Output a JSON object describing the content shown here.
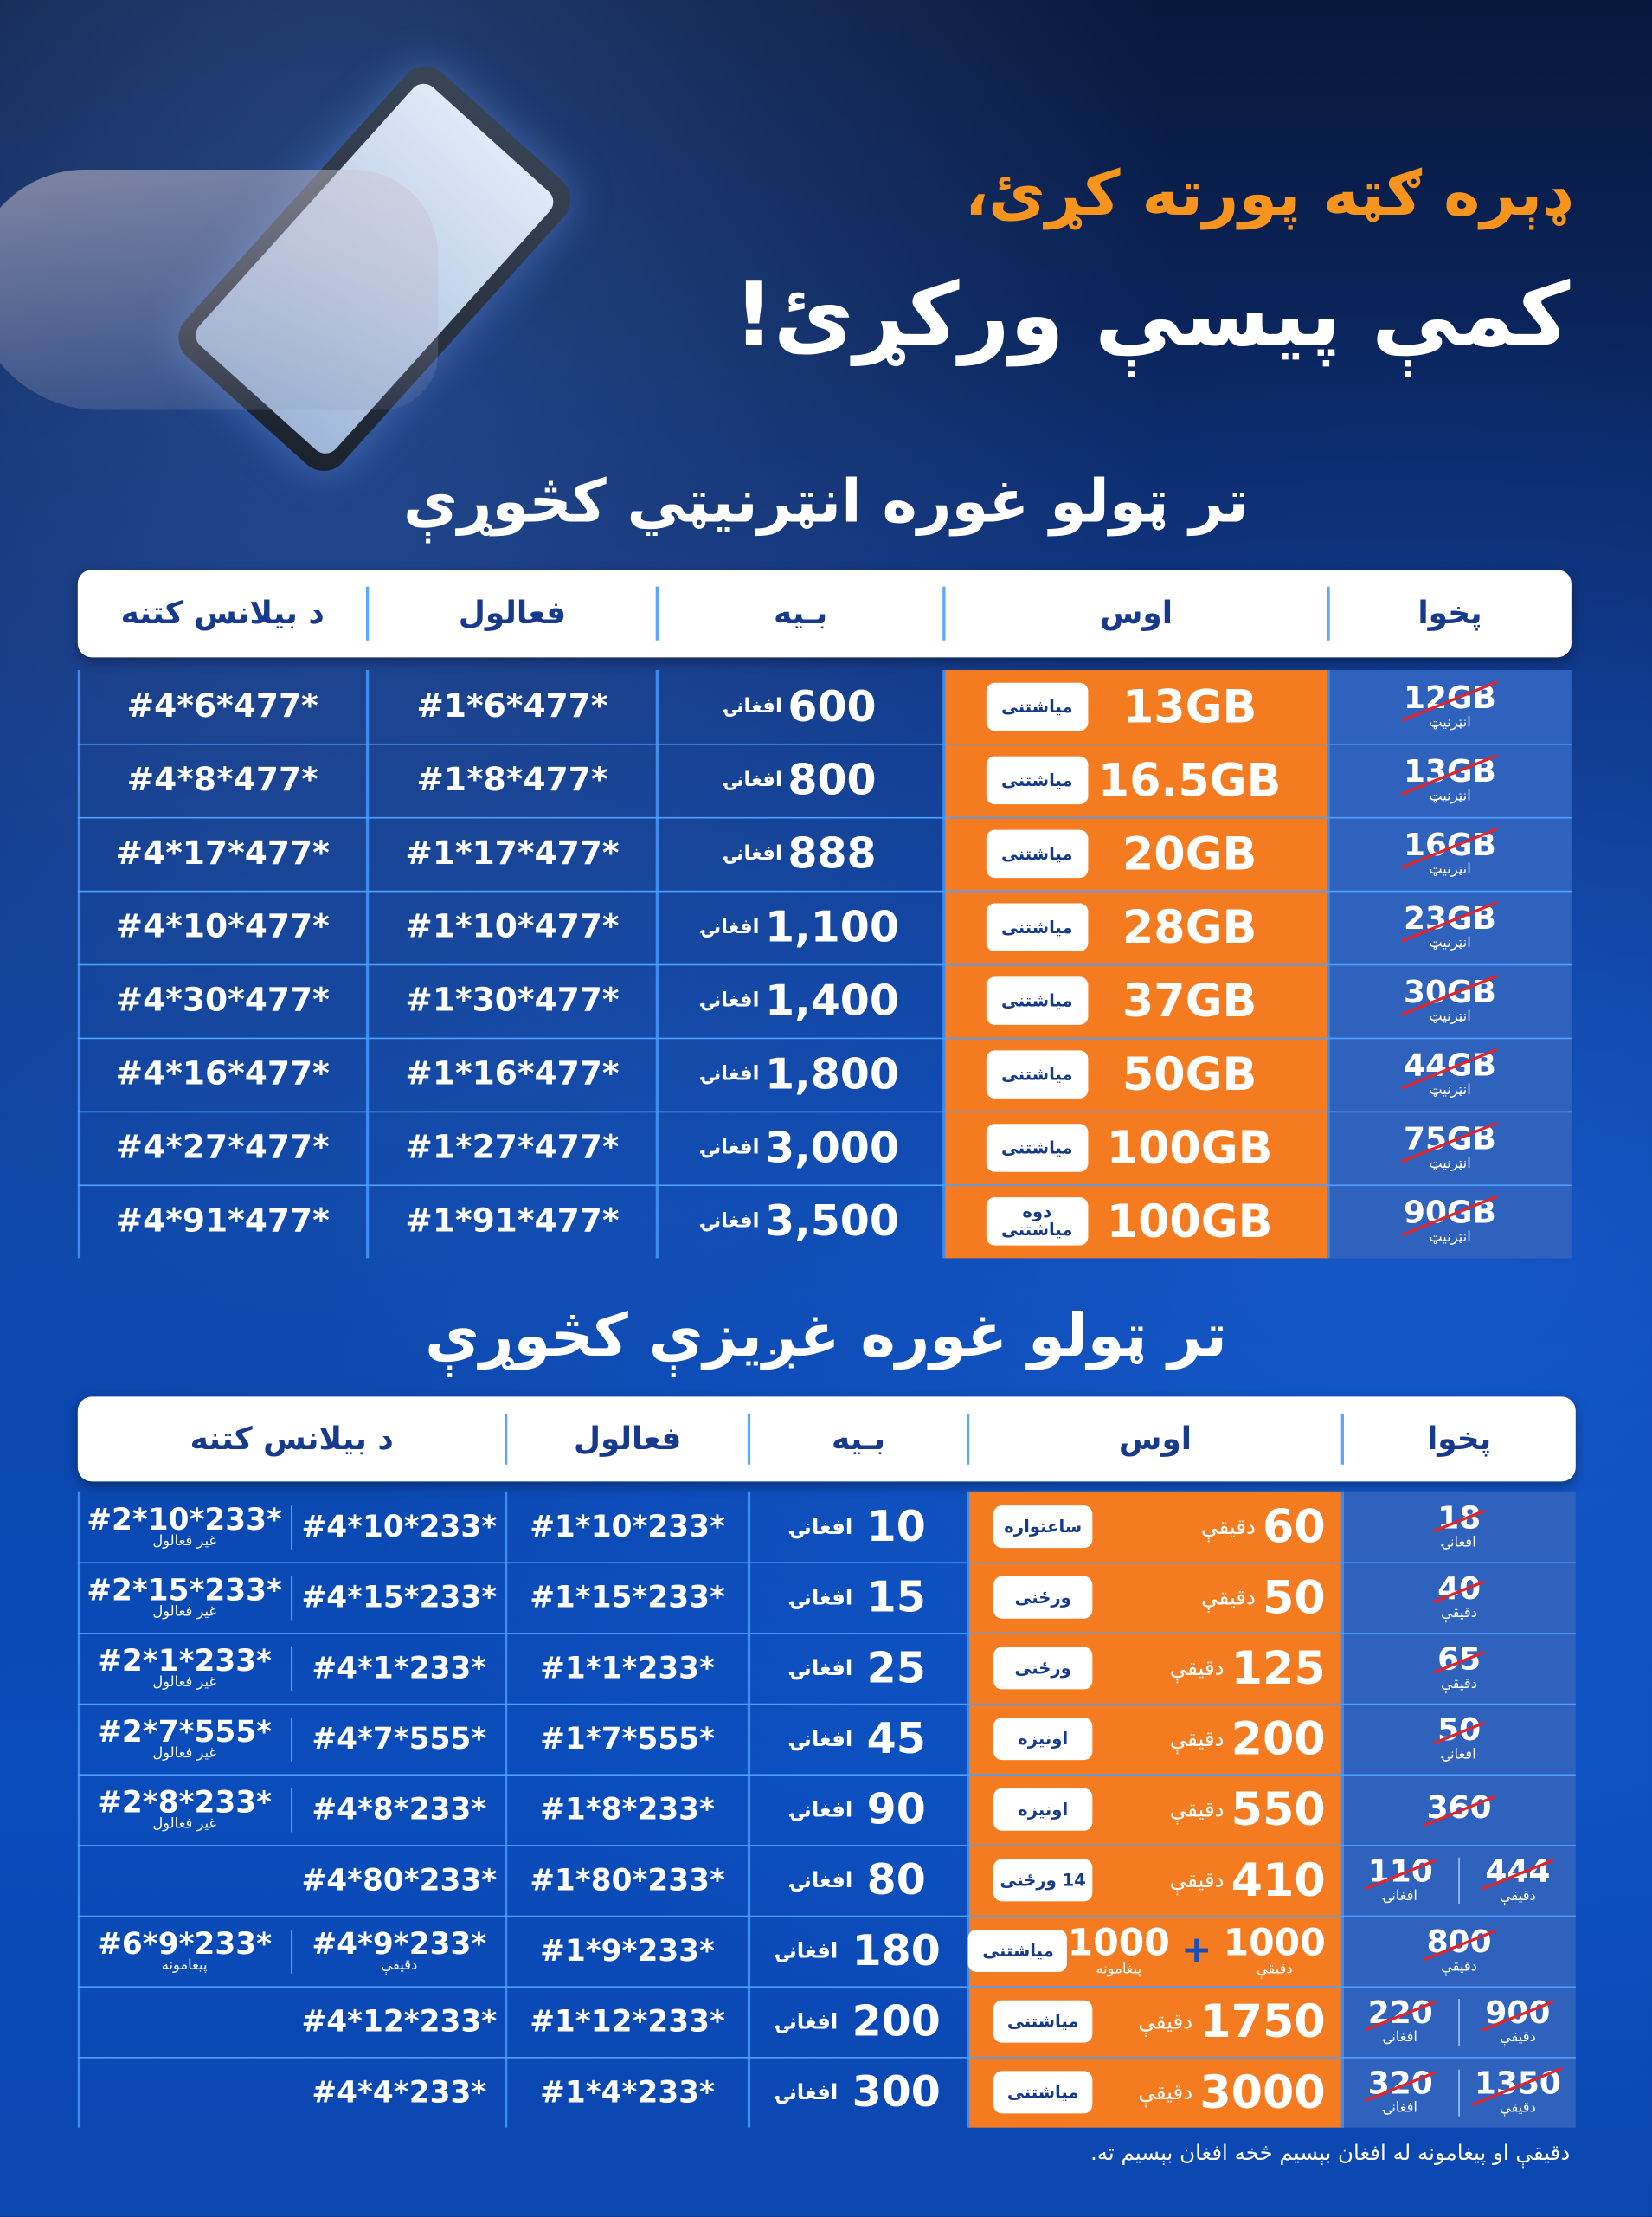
{
  "headline": {
    "line1": "ډېره ګټه پورته کړئ،",
    "line2": "کمې پیسې ورکړئ!"
  },
  "internet": {
    "title": "تر ټولو غوره انټرنیټي کڅوړې",
    "headers": [
      "پخوا",
      "اوس",
      "بـیه",
      "فعالول",
      "د بیلانس کتنه"
    ],
    "rows": [
      {
        "old": "12GB",
        "old_label": "انټرنیټ",
        "new": "13GB",
        "period": "میاشتنی",
        "price": "600",
        "currency": "افغانۍ",
        "activate": "#1*6*477*",
        "balance": "#4*6*477*"
      },
      {
        "old": "13GB",
        "old_label": "انټرنیټ",
        "new": "16.5GB",
        "period": "میاشتنی",
        "price": "800",
        "currency": "افغانۍ",
        "activate": "#1*8*477*",
        "balance": "#4*8*477*"
      },
      {
        "old": "16GB",
        "old_label": "انټرنیټ",
        "new": "20GB",
        "period": "میاشتنی",
        "price": "888",
        "currency": "افغانۍ",
        "activate": "#1*17*477*",
        "balance": "#4*17*477*"
      },
      {
        "old": "23GB",
        "old_label": "انټرنیټ",
        "new": "28GB",
        "period": "میاشتنی",
        "price": "1,100",
        "currency": "افغانۍ",
        "activate": "#1*10*477*",
        "balance": "#4*10*477*"
      },
      {
        "old": "30GB",
        "old_label": "انټرنیټ",
        "new": "37GB",
        "period": "میاشتنی",
        "price": "1,400",
        "currency": "افغانۍ",
        "activate": "#1*30*477*",
        "balance": "#4*30*477*"
      },
      {
        "old": "44GB",
        "old_label": "انټرنیټ",
        "new": "50GB",
        "period": "میاشتنی",
        "price": "1,800",
        "currency": "افغانۍ",
        "activate": "#1*16*477*",
        "balance": "#4*16*477*"
      },
      {
        "old": "75GB",
        "old_label": "انټرنیټ",
        "new": "100GB",
        "period": "میاشتنی",
        "price": "3,000",
        "currency": "افغانۍ",
        "activate": "#1*27*477*",
        "balance": "#4*27*477*"
      },
      {
        "old": "90GB",
        "old_label": "انټرنیټ",
        "new": "100GB",
        "period": "دوه میاشتنی",
        "price": "3,500",
        "currency": "افغانۍ",
        "activate": "#1*91*477*",
        "balance": "#4*91*477*"
      }
    ]
  },
  "voice": {
    "title": "تر ټولو غوره غږیزې کڅوړې",
    "headers": [
      "پخوا",
      "اوس",
      "بـیه",
      "فعالول",
      "د بیلانس کتنه"
    ],
    "rows": [
      {
        "old": [
          {
            "value": "18",
            "unit": "افغانۍ"
          }
        ],
        "new": [
          {
            "value": "60",
            "unit": "دقیقې"
          }
        ],
        "period": "ساعتواره",
        "price": "10",
        "currency": "افغانۍ",
        "activate": "#1*10*233*",
        "balance": [
          {
            "code": "#4*10*233*"
          },
          {
            "code": "#2*10*233*",
            "note": "غیر فعالول"
          }
        ]
      },
      {
        "old": [
          {
            "value": "40",
            "unit": "دقیقې"
          }
        ],
        "new": [
          {
            "value": "50",
            "unit": "دقیقې"
          }
        ],
        "period": "ورځنی",
        "price": "15",
        "currency": "افغانۍ",
        "activate": "#1*15*233*",
        "balance": [
          {
            "code": "#4*15*233*"
          },
          {
            "code": "#2*15*233*",
            "note": "غیر فعالول"
          }
        ]
      },
      {
        "old": [
          {
            "value": "65",
            "unit": "دقیقې"
          }
        ],
        "new": [
          {
            "value": "125",
            "unit": "دقیقې"
          }
        ],
        "period": "ورځنی",
        "price": "25",
        "currency": "افغانۍ",
        "activate": "#1*1*233*",
        "balance": [
          {
            "code": "#4*1*233*"
          },
          {
            "code": "#2*1*233*",
            "note": "غیر فعالول"
          }
        ]
      },
      {
        "old": [
          {
            "value": "50",
            "unit": "افغانۍ"
          }
        ],
        "new": [
          {
            "value": "200",
            "unit": "دقیقې"
          }
        ],
        "period": "اونیزه",
        "price": "45",
        "currency": "افغانۍ",
        "activate": "#1*7*555*",
        "balance": [
          {
            "code": "#4*7*555*"
          },
          {
            "code": "#2*7*555*",
            "note": "غیر فعالول"
          }
        ]
      },
      {
        "old": [
          {
            "value": "360"
          }
        ],
        "new": [
          {
            "value": "550",
            "unit": "دقیقې"
          }
        ],
        "period": "اونیزه",
        "price": "90",
        "currency": "افغانۍ",
        "activate": "#1*8*233*",
        "balance": [
          {
            "code": "#4*8*233*"
          },
          {
            "code": "#2*8*233*",
            "note": "غیر فعالول"
          }
        ]
      },
      {
        "old": [
          {
            "value": "444",
            "unit": "دقیقې"
          },
          {
            "value": "110",
            "unit": "افغانۍ"
          }
        ],
        "new": [
          {
            "value": "410",
            "unit": "دقیقې"
          }
        ],
        "period": "14 ورځنی",
        "price": "80",
        "currency": "افغانۍ",
        "activate": "#1*80*233*",
        "balance": [
          {
            "code": "#4*80*233*"
          }
        ]
      },
      {
        "old": [
          {
            "value": "800",
            "unit": "دقیقې"
          }
        ],
        "new": [
          {
            "value": "1000",
            "unit": "دقیقې"
          },
          {
            "value": "1000",
            "unit": "پیغامونه"
          }
        ],
        "joiner": "+",
        "period": "میاشتنی",
        "price": "180",
        "currency": "افغانۍ",
        "activate": "#1*9*233*",
        "balance": [
          {
            "code": "#4*9*233*",
            "note": "دقیقې"
          },
          {
            "code": "#6*9*233*",
            "note": "پیغامونه"
          }
        ]
      },
      {
        "old": [
          {
            "value": "900",
            "unit": "دقیقې"
          },
          {
            "value": "220",
            "unit": "افغانۍ"
          }
        ],
        "new": [
          {
            "value": "1750",
            "unit": "دقیقې"
          }
        ],
        "period": "میاشتنی",
        "price": "200",
        "currency": "افغانۍ",
        "activate": "#1*12*233*",
        "balance": [
          {
            "code": "#4*12*233*"
          }
        ]
      },
      {
        "old": [
          {
            "value": "1350",
            "unit": "دقیقې"
          },
          {
            "value": "320",
            "unit": "افغانۍ"
          }
        ],
        "new": [
          {
            "value": "3000",
            "unit": "دقیقې"
          }
        ],
        "period": "میاشتنی",
        "price": "300",
        "currency": "افغانۍ",
        "activate": "#1*4*233*",
        "balance": [
          {
            "code": "#4*4*233*"
          }
        ]
      }
    ]
  },
  "footer": "دقیقې او پیغامونه له افغان بېسیم څخه افغان بېسیم ته."
}
